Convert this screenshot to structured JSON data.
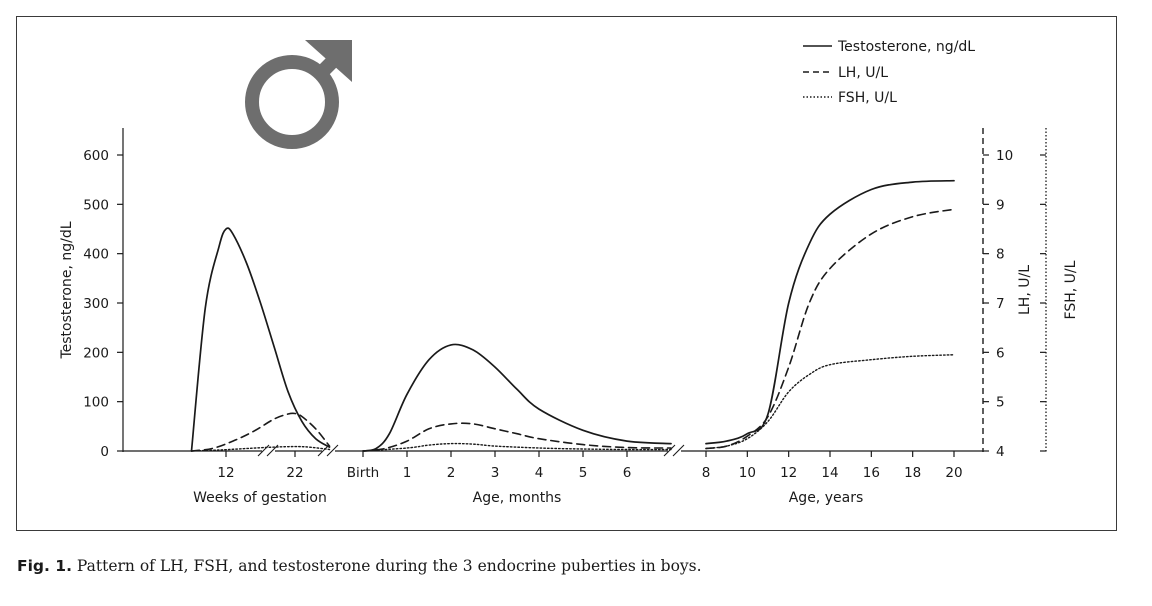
{
  "figure": {
    "caption_label": "Fig. 1.",
    "caption_text": " Pattern of LH, FSH, and testosterone during the 3 endocrine puberties in boys."
  },
  "chart_data": {
    "type": "line",
    "symbol": "♂",
    "legend": {
      "placement": "top-right",
      "entries": [
        {
          "label": "Testosterone, ng/dL",
          "style": "solid"
        },
        {
          "label": "LH, U/L",
          "style": "dashed"
        },
        {
          "label": "FSH, U/L",
          "style": "dotted"
        }
      ]
    },
    "y_left": {
      "label": "Testosterone, ng/dL",
      "range": [
        0,
        600
      ],
      "ticks": [
        "0",
        "100",
        "200",
        "300",
        "400",
        "500",
        "600"
      ]
    },
    "y_right_lh": {
      "label": "LH, U/L",
      "range": [
        4,
        10
      ],
      "ticks": [
        "4",
        "5",
        "6",
        "7",
        "8",
        "9",
        "10"
      ]
    },
    "y_right_fsh": {
      "label": "FSH, U/L"
    },
    "x_sections": [
      {
        "label": "Weeks of gestation",
        "ticks": [
          "12",
          "22"
        ]
      },
      {
        "label": "Age, months",
        "ticks": [
          "Birth",
          "1",
          "2",
          "3",
          "4",
          "5",
          "6"
        ]
      },
      {
        "label": "Age, years",
        "ticks": [
          "8",
          "10",
          "12",
          "14",
          "16",
          "18",
          "20"
        ]
      }
    ],
    "series": [
      {
        "name": "Testosterone, ng/dL",
        "axis": "left",
        "style": "solid",
        "segments": [
          {
            "section": "Weeks of gestation",
            "x": [
              7,
              9,
              11,
              12,
              13,
              15,
              17,
              19,
              21,
              23,
              25,
              27
            ],
            "y": [
              0,
              290,
              415,
              450,
              440,
              380,
              300,
              210,
              120,
              60,
              25,
              8
            ]
          },
          {
            "section": "Age, months",
            "x": [
              0,
              0.3,
              0.6,
              1,
              1.5,
              2,
              2.5,
              3,
              3.5,
              4,
              5,
              6,
              7
            ],
            "y": [
              0,
              5,
              35,
              115,
              185,
              215,
              205,
              170,
              125,
              85,
              42,
              20,
              15
            ]
          },
          {
            "section": "Age, years",
            "x": [
              8,
              9,
              10,
              11,
              12,
              13,
              14,
              16,
              18,
              20
            ],
            "y": [
              15,
              20,
              35,
              75,
              300,
              420,
              480,
              530,
              545,
              548
            ]
          }
        ]
      },
      {
        "name": "LH, U/L",
        "axis": "right",
        "style": "dashed",
        "segments": [
          {
            "section": "Weeks of gestation",
            "x": [
              7,
              10,
              13,
              16,
              19,
              21,
              22,
              23,
              25,
              27
            ],
            "y": [
              4.0,
              4.05,
              4.2,
              4.4,
              4.65,
              4.75,
              4.76,
              4.7,
              4.45,
              4.1
            ]
          },
          {
            "section": "Age, months",
            "x": [
              0,
              0.5,
              1,
              1.5,
              2,
              2.5,
              3,
              3.5,
              4,
              5,
              6,
              7
            ],
            "y": [
              4.0,
              4.05,
              4.2,
              4.45,
              4.55,
              4.55,
              4.45,
              4.35,
              4.25,
              4.13,
              4.07,
              4.06
            ]
          },
          {
            "section": "Age, years",
            "x": [
              8,
              9,
              10,
              11,
              12,
              13,
              14,
              16,
              18,
              20
            ],
            "y": [
              4.05,
              4.1,
              4.3,
              4.7,
              5.7,
              7.0,
              7.7,
              8.4,
              8.75,
              8.9
            ]
          }
        ]
      },
      {
        "name": "FSH, U/L",
        "axis": "right",
        "style": "dotted",
        "segments": [
          {
            "section": "Weeks of gestation",
            "x": [
              7,
              11,
              15,
              19,
              22,
              24,
              27
            ],
            "y": [
              4.0,
              4.02,
              4.05,
              4.08,
              4.09,
              4.08,
              4.03
            ]
          },
          {
            "section": "Age, months",
            "x": [
              0,
              1,
              1.5,
              2,
              2.5,
              3,
              4,
              5,
              6,
              7
            ],
            "y": [
              4.0,
              4.06,
              4.12,
              4.15,
              4.14,
              4.1,
              4.06,
              4.04,
              4.03,
              4.03
            ]
          },
          {
            "section": "Age, years",
            "x": [
              8,
              9,
              10,
              11,
              12,
              13,
              14,
              16,
              18,
              20
            ],
            "y": [
              4.05,
              4.1,
              4.25,
              4.6,
              5.2,
              5.55,
              5.75,
              5.85,
              5.92,
              5.95
            ]
          }
        ]
      }
    ]
  }
}
